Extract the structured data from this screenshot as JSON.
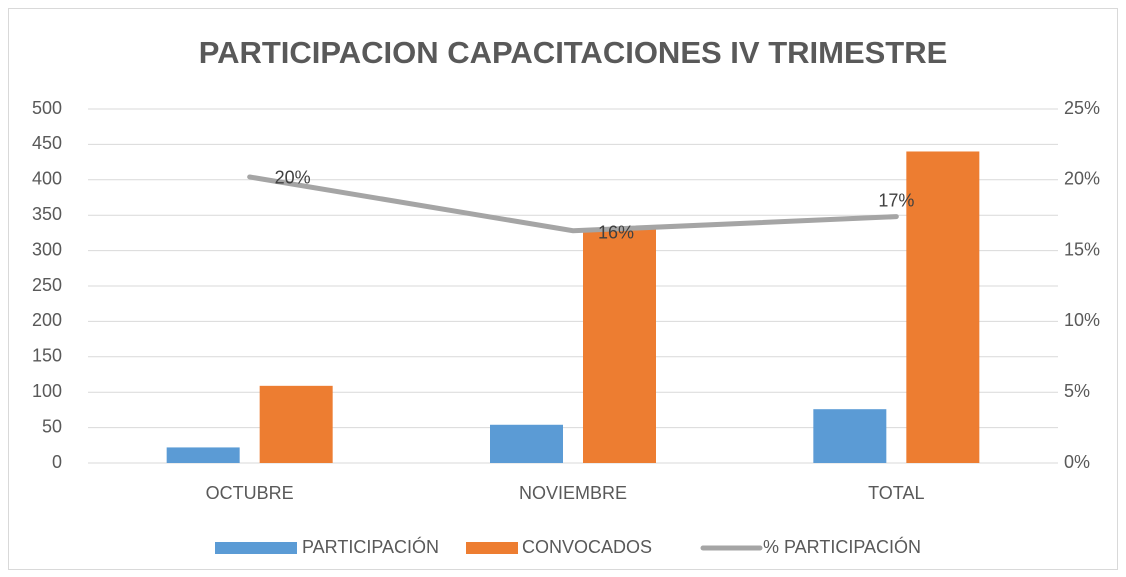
{
  "chart_data": {
    "type": "bar",
    "title": "PARTICIPACION CAPACITACIONES IV TRIMESTRE",
    "categories": [
      "OCTUBRE",
      "NOVIEMBRE",
      "TOTAL"
    ],
    "series": [
      {
        "name": "PARTICIPACIÓN",
        "color": "#5b9bd5",
        "type": "bar",
        "values": [
          22,
          54,
          76
        ]
      },
      {
        "name": "CONVOCADOS",
        "color": "#ed7d31",
        "type": "bar",
        "values": [
          109,
          331,
          440
        ]
      },
      {
        "name": "% PARTICIPACIÓN",
        "color": "#a5a5a5",
        "type": "line",
        "axis": "y2",
        "values": [
          20.2,
          16.4,
          17.4
        ],
        "value_labels": [
          "20%",
          "16%",
          "17%"
        ]
      }
    ],
    "ylim": [
      0,
      500
    ],
    "yticks": [
      0,
      50,
      100,
      150,
      200,
      250,
      300,
      350,
      400,
      450,
      500
    ],
    "y2lim": [
      0,
      25
    ],
    "y2ticks": [
      {
        "value": 0,
        "label": "0%"
      },
      {
        "value": 5,
        "label": "5%"
      },
      {
        "value": 10,
        "label": "10%"
      },
      {
        "value": 15,
        "label": "15%"
      },
      {
        "value": 20,
        "label": "20%"
      },
      {
        "value": 25,
        "label": "25%"
      }
    ],
    "grid": true,
    "legend": "bottom"
  }
}
